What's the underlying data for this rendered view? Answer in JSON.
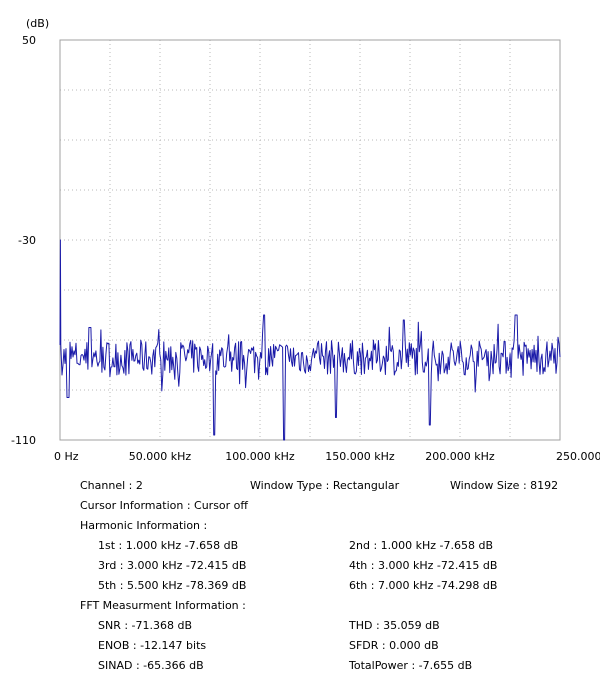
{
  "chart_data": {
    "type": "line",
    "ylabel": "(dB)",
    "ylim": [
      -110,
      50
    ],
    "y_ticks": [
      "50",
      "-30",
      "-110"
    ],
    "xlim": [
      0,
      250
    ],
    "x_ticks": [
      "0 Hz",
      "50.000 kHz",
      "100.000 kHz",
      "150.000 kHz",
      "200.000 kHz",
      "250.000 kHz"
    ],
    "x_tick_values": [
      0,
      50,
      100,
      150,
      200,
      250
    ],
    "grid": true,
    "line_color": "#1a1aa8",
    "grid_color": "#b8b8b8",
    "dc_peak_kHz": 0,
    "dc_peak_dB": -30,
    "noise_floor_dB": -77,
    "peaks": [
      {
        "x_kHz": 15,
        "y_dB": -65
      },
      {
        "x_kHz": 102,
        "y_dB": -60
      },
      {
        "x_kHz": 172,
        "y_dB": -62
      },
      {
        "x_kHz": 228,
        "y_dB": -60
      }
    ],
    "dips": [
      {
        "x_kHz": 4,
        "y_dB": -93
      },
      {
        "x_kHz": 77,
        "y_dB": -108
      },
      {
        "x_kHz": 112,
        "y_dB": -110
      },
      {
        "x_kHz": 138,
        "y_dB": -101
      },
      {
        "x_kHz": 185,
        "y_dB": -104
      }
    ]
  },
  "info": {
    "channel": "Channel : 2",
    "window_type": "Window Type : Rectangular",
    "window_size": "Window Size : 8192",
    "cursor": "Cursor Information :  Cursor off",
    "harmonic_header": "Harmonic Information :",
    "harmonics": {
      "h1": "1st : 1.000 kHz  -7.658 dB",
      "h2": "2nd : 1.000 kHz  -7.658 dB",
      "h3": "3rd : 3.000 kHz  -72.415 dB",
      "h4": "4th : 3.000 kHz  -72.415 dB",
      "h5": "5th : 5.500 kHz  -78.369 dB",
      "h6": "6th : 7.000 kHz  -74.298 dB"
    },
    "fft_header": "FFT Measurment Information :",
    "fft": {
      "snr": "SNR : -71.368 dB",
      "thd": "THD : 35.059 dB",
      "enob": "ENOB : -12.147 bits",
      "sfdr": "SFDR :  0.000 dB",
      "sinad": "SINAD : -65.366 dB",
      "total_power": "TotalPower : -7.655 dB"
    }
  }
}
